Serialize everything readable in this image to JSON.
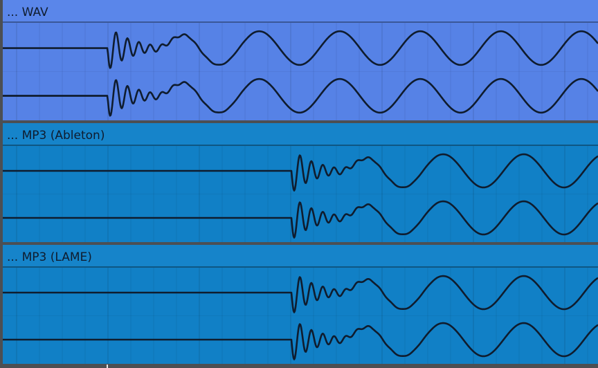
{
  "clips": [
    {
      "title": "... WAV",
      "color": "#5682e6",
      "header_color": "#5a86ea",
      "waveform_onset": 0.176
    },
    {
      "title": "... MP3 (Ableton)",
      "color": "#1180c6",
      "header_color": "#1684ca",
      "waveform_onset": 0.485
    },
    {
      "title": "... MP3 (LAME)",
      "color": "#1180c6",
      "header_color": "#1684ca",
      "waveform_onset": 0.485
    }
  ],
  "colors": {
    "waveform": "#0f1c2e",
    "gridline": "#000000",
    "separator": "#4c4f53"
  },
  "icons": {
    "playhead": "playhead-marker"
  }
}
